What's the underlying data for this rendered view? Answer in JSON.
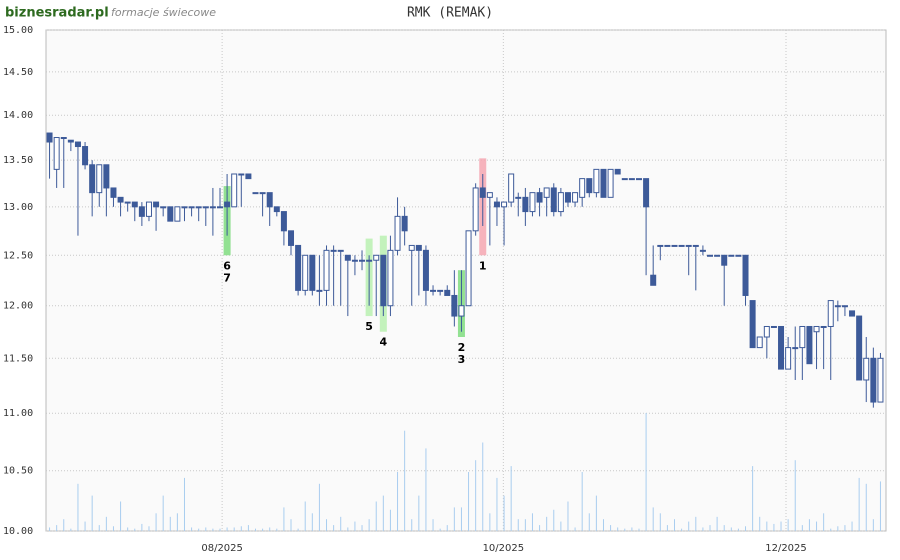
{
  "header": {
    "logo": "biznesradar.pl",
    "subtitle": "formacje świecowe"
  },
  "chart_data": {
    "type": "candlestick",
    "title": "RMK (REMAK)",
    "ylog": true,
    "grid": true,
    "up_color": "#ffffff",
    "down_color": "#3d5a99",
    "volume_color": "#a9cdef",
    "ylim": [
      10,
      15
    ],
    "yticks": [
      {
        "value": 10,
        "label": "10.00"
      },
      {
        "value": 10.5,
        "label": "10.50"
      },
      {
        "value": 11,
        "label": "11.00"
      },
      {
        "value": 11.5,
        "label": "11.50"
      },
      {
        "value": 12,
        "label": "12.00"
      },
      {
        "value": 12.5,
        "label": "12.50"
      },
      {
        "value": 13,
        "label": "13.00"
      },
      {
        "value": 13.5,
        "label": "13.50"
      },
      {
        "value": 14,
        "label": "14.00"
      },
      {
        "value": 14.5,
        "label": "14.50"
      },
      {
        "value": 15,
        "label": "15.00"
      }
    ],
    "xticks": [
      {
        "value": 24.3,
        "label": "08/2025"
      },
      {
        "value": 63.9,
        "label": "10/2025"
      },
      {
        "value": 103.7,
        "label": "12/2025"
      }
    ],
    "candles": [
      [
        13.8,
        13.8,
        13.3,
        13.7
      ],
      [
        13.4,
        13.75,
        13.2,
        13.75
      ],
      [
        13.75,
        13.75,
        13.2,
        13.75
      ],
      [
        13.72,
        13.72,
        13.6,
        13.7
      ],
      [
        13.7,
        13.7,
        12.7,
        13.65
      ],
      [
        13.65,
        13.7,
        13.4,
        13.45
      ],
      [
        13.45,
        13.5,
        12.9,
        13.15
      ],
      [
        13.15,
        13.45,
        13.0,
        13.45
      ],
      [
        13.45,
        13.45,
        12.9,
        13.2
      ],
      [
        13.2,
        13.2,
        13.0,
        13.1
      ],
      [
        13.1,
        13.1,
        12.9,
        13.05
      ],
      [
        13.05,
        13.05,
        12.95,
        13.05
      ],
      [
        13.05,
        13.05,
        12.85,
        13.0
      ],
      [
        13.0,
        13.05,
        12.8,
        12.9
      ],
      [
        12.9,
        13.05,
        12.85,
        13.05
      ],
      [
        13.05,
        13.05,
        12.75,
        13.0
      ],
      [
        13.0,
        13.0,
        12.9,
        13.0
      ],
      [
        13.0,
        13.0,
        12.85,
        12.85
      ],
      [
        12.85,
        13.0,
        12.85,
        13.0
      ],
      [
        13.0,
        13.0,
        12.85,
        13.0
      ],
      [
        13.0,
        13.0,
        12.9,
        13.0
      ],
      [
        13.0,
        13.0,
        12.85,
        13.0
      ],
      [
        13.0,
        13.0,
        12.8,
        13.0
      ],
      [
        13.0,
        13.2,
        12.7,
        13.0
      ],
      [
        13.0,
        13.2,
        13.0,
        13.0
      ],
      [
        13.05,
        13.35,
        12.7,
        13.0
      ],
      [
        13.0,
        13.35,
        13.0,
        13.35
      ],
      [
        13.35,
        13.35,
        13.0,
        13.35
      ],
      [
        13.35,
        13.35,
        13.3,
        13.3
      ],
      [
        13.15,
        13.15,
        13.15,
        13.15
      ],
      [
        13.15,
        13.15,
        12.9,
        13.15
      ],
      [
        13.15,
        13.15,
        12.8,
        13.0
      ],
      [
        13.0,
        13.0,
        12.9,
        12.95
      ],
      [
        12.95,
        12.95,
        12.6,
        12.75
      ],
      [
        12.75,
        12.75,
        12.5,
        12.6
      ],
      [
        12.6,
        12.6,
        12.1,
        12.15
      ],
      [
        12.15,
        12.5,
        12.1,
        12.5
      ],
      [
        12.5,
        12.5,
        12.1,
        12.15
      ],
      [
        12.15,
        12.5,
        12.0,
        12.15
      ],
      [
        12.15,
        12.6,
        12.0,
        12.55
      ],
      [
        12.55,
        12.6,
        12.0,
        12.55
      ],
      [
        12.55,
        12.55,
        12.0,
        12.55
      ],
      [
        12.5,
        12.5,
        11.9,
        12.45
      ],
      [
        12.45,
        12.5,
        12.3,
        12.45
      ],
      [
        12.45,
        12.55,
        12.35,
        12.45
      ],
      [
        12.45,
        12.5,
        12.0,
        12.45
      ],
      [
        12.45,
        12.5,
        11.9,
        12.5
      ],
      [
        12.5,
        12.5,
        11.9,
        12.0
      ],
      [
        12.0,
        12.7,
        11.9,
        12.55
      ],
      [
        12.55,
        13.1,
        12.5,
        12.9
      ],
      [
        12.9,
        13.0,
        12.6,
        12.75
      ],
      [
        12.55,
        12.6,
        12.0,
        12.6
      ],
      [
        12.6,
        12.6,
        12.1,
        12.55
      ],
      [
        12.55,
        12.6,
        12.0,
        12.15
      ],
      [
        12.15,
        12.2,
        12.1,
        12.15
      ],
      [
        12.15,
        12.15,
        12.1,
        12.15
      ],
      [
        12.15,
        12.2,
        12.1,
        12.1
      ],
      [
        12.1,
        12.35,
        11.8,
        11.9
      ],
      [
        11.9,
        12.35,
        11.75,
        12.0
      ],
      [
        12.0,
        12.75,
        12.0,
        12.75
      ],
      [
        12.75,
        13.25,
        12.7,
        13.2
      ],
      [
        13.2,
        13.35,
        12.8,
        13.1
      ],
      [
        13.1,
        13.15,
        12.6,
        13.15
      ],
      [
        13.05,
        13.1,
        12.8,
        13.0
      ],
      [
        13.0,
        13.05,
        12.6,
        13.05
      ],
      [
        13.05,
        13.35,
        13.0,
        13.35
      ],
      [
        13.1,
        13.15,
        12.9,
        13.1
      ],
      [
        13.1,
        13.2,
        12.8,
        12.95
      ],
      [
        12.95,
        13.15,
        12.9,
        13.15
      ],
      [
        13.15,
        13.2,
        12.9,
        13.05
      ],
      [
        13.1,
        13.2,
        12.9,
        13.2
      ],
      [
        13.2,
        13.25,
        12.9,
        12.95
      ],
      [
        12.95,
        13.2,
        12.9,
        13.15
      ],
      [
        13.15,
        13.15,
        13.0,
        13.05
      ],
      [
        13.05,
        13.15,
        13.0,
        13.15
      ],
      [
        13.1,
        13.3,
        13.0,
        13.3
      ],
      [
        13.3,
        13.3,
        13.1,
        13.15
      ],
      [
        13.15,
        13.4,
        13.1,
        13.4
      ],
      [
        13.4,
        13.4,
        13.1,
        13.1
      ],
      [
        13.1,
        13.4,
        13.1,
        13.4
      ],
      [
        13.4,
        13.4,
        13.35,
        13.35
      ],
      [
        13.3,
        13.3,
        13.3,
        13.3
      ],
      [
        13.3,
        13.3,
        13.3,
        13.3
      ],
      [
        13.3,
        13.3,
        13.3,
        13.3
      ],
      [
        13.3,
        13.3,
        12.3,
        13.0
      ],
      [
        12.3,
        12.6,
        12.2,
        12.2
      ],
      [
        12.6,
        12.6,
        12.45,
        12.6
      ],
      [
        12.6,
        12.6,
        12.6,
        12.6
      ],
      [
        12.6,
        12.6,
        12.6,
        12.6
      ],
      [
        12.6,
        12.6,
        12.6,
        12.6
      ],
      [
        12.6,
        12.6,
        12.3,
        12.6
      ],
      [
        12.6,
        12.6,
        12.15,
        12.6
      ],
      [
        12.55,
        12.6,
        12.5,
        12.55
      ],
      [
        12.5,
        12.5,
        12.5,
        12.5
      ],
      [
        12.5,
        12.5,
        12.5,
        12.5
      ],
      [
        12.5,
        12.5,
        12.0,
        12.4
      ],
      [
        12.5,
        12.5,
        12.5,
        12.5
      ],
      [
        12.5,
        12.5,
        12.5,
        12.5
      ],
      [
        12.5,
        12.5,
        12.0,
        12.1
      ],
      [
        12.05,
        12.05,
        11.6,
        11.6
      ],
      [
        11.6,
        11.7,
        11.6,
        11.7
      ],
      [
        11.7,
        11.8,
        11.5,
        11.8
      ],
      [
        11.8,
        11.8,
        11.8,
        11.8
      ],
      [
        11.8,
        11.8,
        11.4,
        11.4
      ],
      [
        11.4,
        11.7,
        11.4,
        11.6
      ],
      [
        11.6,
        11.8,
        11.3,
        11.6
      ],
      [
        11.6,
        11.8,
        11.3,
        11.8
      ],
      [
        11.8,
        11.8,
        11.45,
        11.45
      ],
      [
        11.75,
        11.8,
        11.4,
        11.8
      ],
      [
        11.8,
        11.8,
        11.4,
        11.8
      ],
      [
        11.8,
        12.05,
        11.3,
        12.05
      ],
      [
        12.0,
        12.05,
        11.85,
        12.0
      ],
      [
        12.0,
        12.0,
        11.9,
        12.0
      ],
      [
        11.95,
        11.95,
        11.9,
        11.9
      ],
      [
        11.9,
        11.9,
        11.3,
        11.3
      ],
      [
        11.3,
        11.7,
        11.1,
        11.5
      ],
      [
        11.5,
        11.6,
        11.05,
        11.1
      ],
      [
        11.1,
        11.55,
        11.1,
        11.5
      ]
    ],
    "volumes": [
      3,
      5,
      10,
      2,
      40,
      8,
      30,
      5,
      12,
      4,
      25,
      3,
      2,
      6,
      4,
      15,
      30,
      12,
      15,
      45,
      3,
      2,
      3,
      2,
      2,
      3,
      3,
      4,
      5,
      2,
      2,
      3,
      2,
      20,
      10,
      2,
      25,
      15,
      40,
      10,
      5,
      12,
      3,
      8,
      5,
      10,
      25,
      30,
      18,
      50,
      85,
      10,
      30,
      70,
      10,
      2,
      5,
      20,
      20,
      50,
      60,
      75,
      15,
      45,
      30,
      55,
      10,
      10,
      15,
      5,
      12,
      18,
      8,
      25,
      3,
      50,
      15,
      30,
      10,
      5,
      3,
      2,
      3,
      2,
      100,
      20,
      15,
      5,
      10,
      2,
      8,
      12,
      3,
      5,
      12,
      5,
      3,
      2,
      4,
      55,
      12,
      8,
      6,
      8,
      10,
      60,
      5,
      10,
      8,
      15,
      2,
      4,
      5,
      8,
      45,
      40,
      10,
      42
    ],
    "annotations": [
      {
        "index": 25,
        "low": 12.5,
        "high": 13.22,
        "color": "#7fdc7f",
        "labels": [
          "6",
          "7"
        ]
      },
      {
        "index": 45,
        "low": 11.9,
        "high": 12.67,
        "color": "#b9f0b0",
        "labels": [
          "5"
        ]
      },
      {
        "index": 47,
        "low": 11.75,
        "high": 12.7,
        "color": "#b9f0b0",
        "labels": [
          "4"
        ]
      },
      {
        "index": 58,
        "low": 11.7,
        "high": 12.35,
        "color": "#7fdc7f",
        "labels": [
          "2",
          "3"
        ]
      },
      {
        "index": 61,
        "low": 12.5,
        "high": 13.52,
        "color": "#f4a6b0",
        "labels": [
          "1"
        ]
      }
    ]
  }
}
